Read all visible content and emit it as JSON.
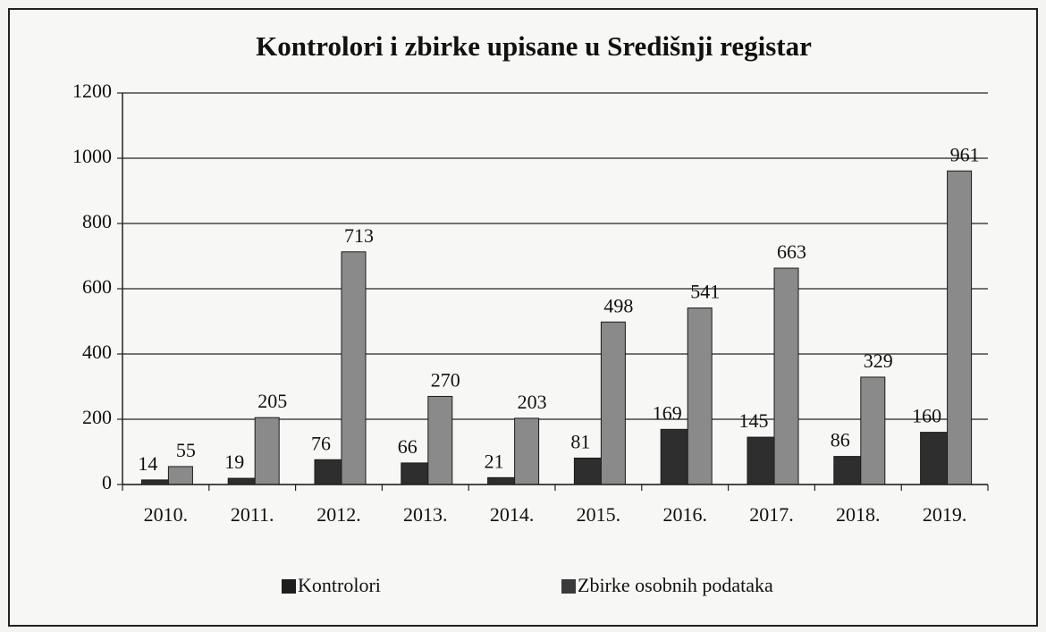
{
  "chart_data": {
    "type": "bar",
    "title": "Kontrolori i zbirke upisane u Središnji registar",
    "categories": [
      "2010.",
      "2011.",
      "2012.",
      "2013.",
      "2014.",
      "2015.",
      "2016.",
      "2017.",
      "2018.",
      "2019."
    ],
    "series": [
      {
        "name": "Kontrolori",
        "color": "#2e2e2e",
        "values": [
          14,
          19,
          76,
          66,
          21,
          81,
          169,
          145,
          86,
          160
        ]
      },
      {
        "name": "Zbirke osobnih podataka",
        "color": "#8a8a8a",
        "values": [
          55,
          205,
          713,
          270,
          203,
          498,
          541,
          663,
          329,
          961
        ]
      }
    ],
    "ylim": [
      0,
      1200
    ],
    "yticks": [
      0,
      200,
      400,
      600,
      800,
      1000,
      1200
    ],
    "grid": true,
    "legend": "bottom"
  }
}
